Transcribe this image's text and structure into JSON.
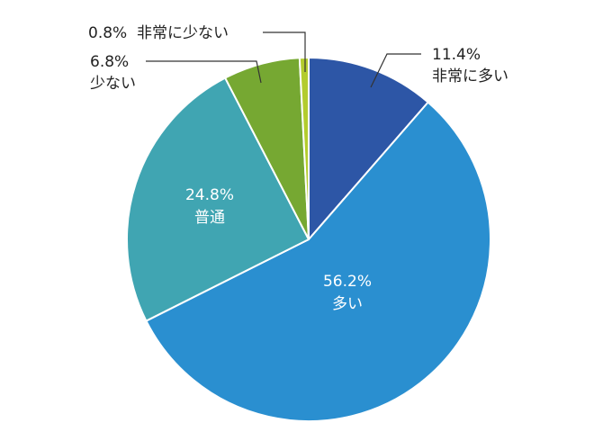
{
  "chart_data": {
    "type": "pie",
    "start_angle_deg": 0,
    "direction": "clockwise",
    "slices": [
      {
        "name": "非常に多い",
        "value": 11.4,
        "value_label": "11.4%",
        "color": "#2d56a6"
      },
      {
        "name": "多い",
        "value": 56.2,
        "value_label": "56.2%",
        "color": "#2a8fd0"
      },
      {
        "name": "普通",
        "value": 24.8,
        "value_label": "24.8%",
        "color": "#40a5b2"
      },
      {
        "name": "少ない",
        "value": 6.8,
        "value_label": "6.8%",
        "color": "#76a832"
      },
      {
        "name": "非常に少ない",
        "value": 0.8,
        "value_label": "0.8%",
        "color": "#b3cc2e"
      }
    ],
    "legend": "none"
  }
}
